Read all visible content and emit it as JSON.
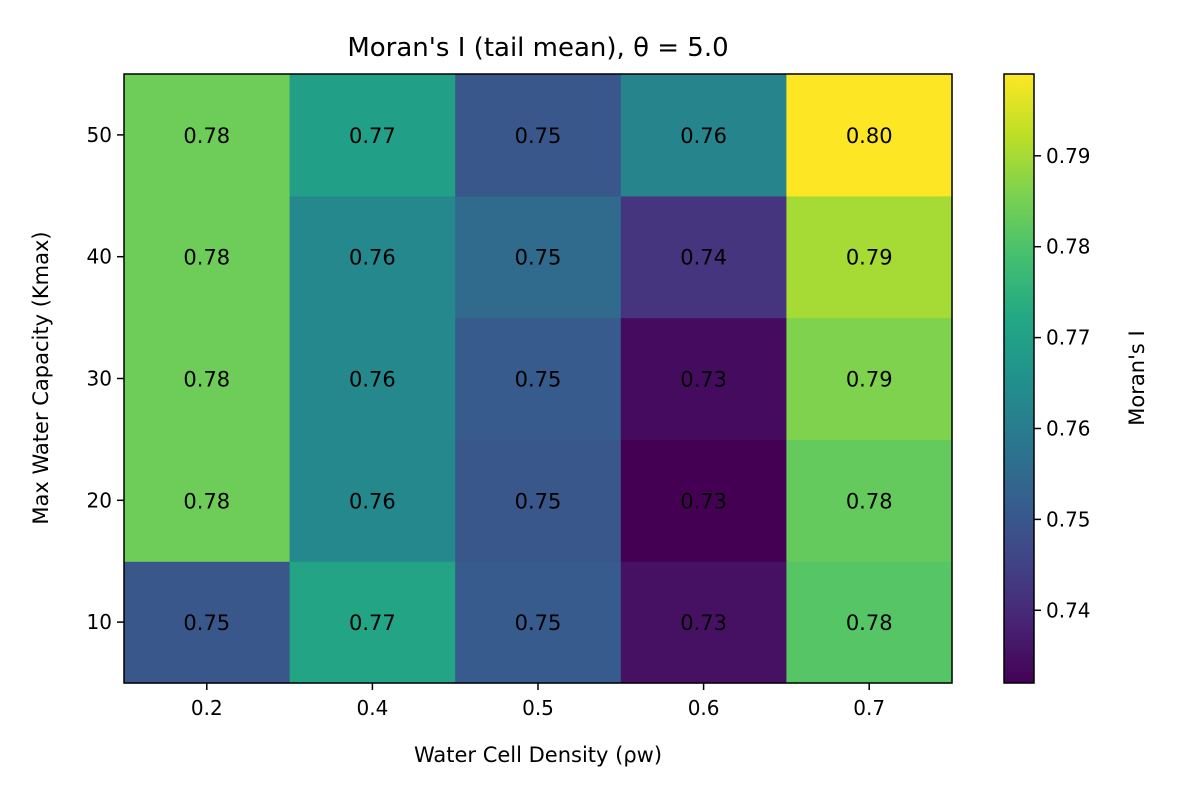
{
  "chart_data": {
    "type": "heatmap",
    "title": "Moran's I (tail mean), θ = 5.0",
    "xlabel": "Water Cell Density (ρw)",
    "ylabel": "Max Water Capacity (Kmax)",
    "x_categories": [
      "0.2",
      "0.4",
      "0.5",
      "0.6",
      "0.7"
    ],
    "y_categories": [
      "10",
      "20",
      "30",
      "40",
      "50"
    ],
    "values": [
      [
        0.75,
        0.771,
        0.751,
        0.735,
        0.781
      ],
      [
        0.784,
        0.763,
        0.75,
        0.732,
        0.783
      ],
      [
        0.784,
        0.763,
        0.751,
        0.734,
        0.786
      ],
      [
        0.784,
        0.763,
        0.755,
        0.742,
        0.79
      ],
      [
        0.784,
        0.77,
        0.75,
        0.762,
        0.799
      ]
    ],
    "cell_labels": [
      [
        "0.75",
        "0.77",
        "0.75",
        "0.73",
        "0.78"
      ],
      [
        "0.78",
        "0.76",
        "0.75",
        "0.73",
        "0.78"
      ],
      [
        "0.78",
        "0.76",
        "0.75",
        "0.73",
        "0.79"
      ],
      [
        "0.78",
        "0.76",
        "0.75",
        "0.74",
        "0.79"
      ],
      [
        "0.78",
        "0.77",
        "0.75",
        "0.76",
        "0.80"
      ]
    ],
    "colormap": "viridis",
    "colorbar": {
      "label": "Moran's I",
      "range": [
        0.732,
        0.799
      ],
      "ticks": [
        "0.74",
        "0.75",
        "0.76",
        "0.77",
        "0.78",
        "0.79"
      ]
    }
  }
}
